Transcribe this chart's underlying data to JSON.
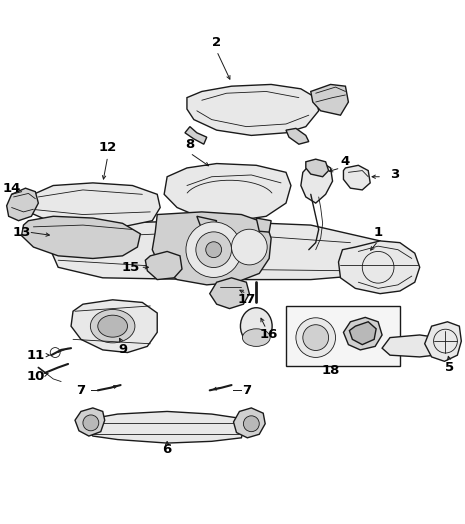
{
  "background_color": "#ffffff",
  "line_color": "#1a1a1a",
  "label_color": "#000000",
  "fig_width": 4.65,
  "fig_height": 5.24,
  "dpi": 100,
  "lw_main": 1.0,
  "lw_thin": 0.6,
  "lw_label": 0.7,
  "label_fontsize": 9.5,
  "label_fontweight": "bold"
}
